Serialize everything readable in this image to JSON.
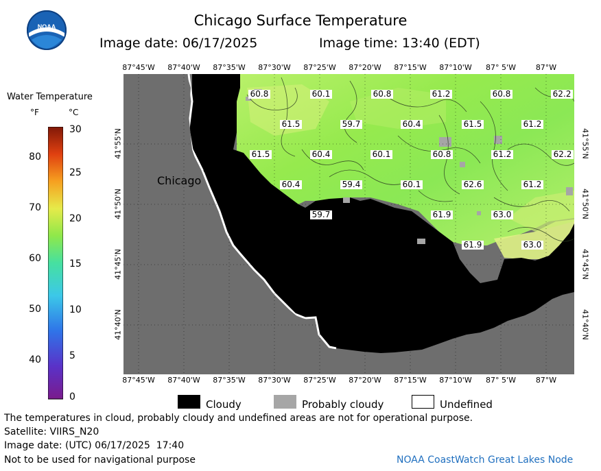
{
  "title": "Chicago Surface Temperature",
  "image_date": "Image date: 06/17/2025",
  "image_time": "Image time: 13:40 (EDT)",
  "logo_text": "NOAA",
  "longitude_labels": [
    "87°45'W",
    "87°40'W",
    "87°35'W",
    "87°30'W",
    "87°25'W",
    "87°20'W",
    "87°15'W",
    "87°10'W",
    "87° 5'W",
    "87°W"
  ],
  "latitude_labels": [
    "41°55'N",
    "41°50'N",
    "41°45'N",
    "41°40'N"
  ],
  "city_label": "Chicago",
  "legend": {
    "title": "Water Temperature",
    "unit_f": "°F",
    "unit_c": "°C",
    "f_ticks": [
      "80",
      "70",
      "60",
      "50",
      "40"
    ],
    "c_ticks": [
      "30",
      "25",
      "20",
      "15",
      "10",
      "5",
      "0"
    ]
  },
  "temperature_labels": [
    "60.8",
    "60.1",
    "60.8",
    "61.2",
    "60.8",
    "62.2",
    "61.5",
    "59.7",
    "60.4",
    "61.5",
    "61.2",
    "61.5",
    "60.4",
    "60.1",
    "60.8",
    "61.2",
    "62.2",
    "60.4",
    "59.4",
    "60.1",
    "62.6",
    "61.2",
    "59.7",
    "61.9",
    "63.0",
    "61.9",
    "63.0"
  ],
  "key": {
    "cloudy": "Cloudy",
    "probably_cloudy": "Probably cloudy",
    "undefined": "Undefined"
  },
  "footer": {
    "line1": "The temperatures in cloud, probably cloudy and undefined areas are not for operational purpose.",
    "line2": "Satellite: VIIRS_N20",
    "line3": "Image date: (UTC) 06/17/2025  17:40",
    "line4": "Not to be used for navigational purpose"
  },
  "credit": "NOAA CoastWatch Great Lakes Node",
  "colors": {
    "land": "#6e6e6e",
    "cloud": "#000000",
    "probably_cloudy": "#a0a0a0",
    "water_cool": "#8fe84a",
    "water_warm": "#c8f070",
    "water_hot": "#e8f590",
    "credit": "#1f6fbf"
  }
}
